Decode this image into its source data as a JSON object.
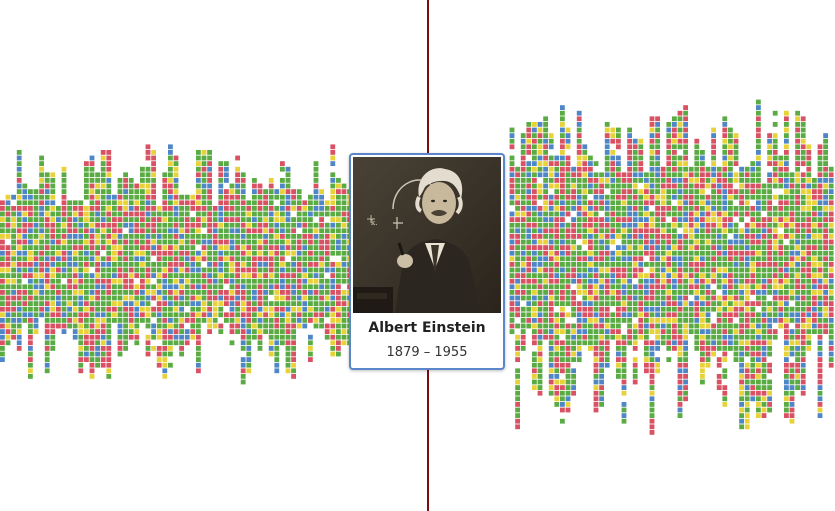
{
  "person": {
    "name": "Albert Einstein",
    "dates": "1879 – 1955"
  },
  "colors": {
    "palette": [
      "#5aab43",
      "#d95264",
      "#4f86c6",
      "#e8d23a",
      "#5aab43",
      "#d95264",
      "#5aab43"
    ],
    "cursor_line": "#7a0f0f",
    "card_border": "#5b86c9"
  },
  "icons": {
    "portrait": "portrait-photo-icon"
  }
}
